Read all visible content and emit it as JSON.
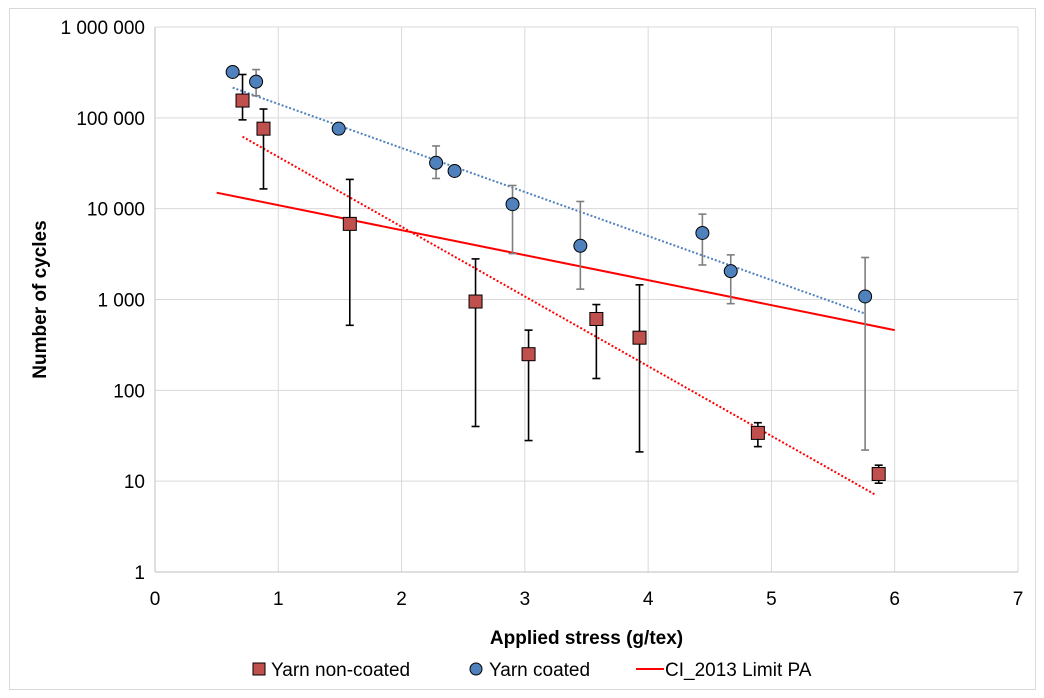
{
  "chart_data": {
    "type": "scatter",
    "xlabel": "Applied stress (g/tex)",
    "ylabel": "Number of cycles",
    "xlim": [
      0,
      7
    ],
    "ylim": [
      1,
      1000000
    ],
    "y_scale": "log",
    "x_ticks": [
      0,
      1,
      2,
      3,
      4,
      5,
      6,
      7
    ],
    "x_tick_labels": [
      "0",
      "1",
      "2",
      "3",
      "4",
      "5",
      "6",
      "7"
    ],
    "y_ticks": [
      1,
      10,
      100,
      1000,
      10000,
      100000,
      1000000
    ],
    "y_tick_labels": [
      "1",
      "10",
      "100",
      "1 000",
      "10 000",
      "100 000",
      "1 000 000"
    ],
    "grid": true,
    "legend_position": "bottom",
    "series": [
      {
        "name": "Yarn non-coated",
        "marker": "square",
        "color": "#c0504d",
        "error_bar_color": "#000000",
        "points": [
          {
            "x": 0.71,
            "y": 155000,
            "err_low": 95000,
            "err_high": 300000
          },
          {
            "x": 0.88,
            "y": 76000,
            "err_low": 16500,
            "err_high": 125000
          },
          {
            "x": 1.58,
            "y": 6800,
            "err_low": 520,
            "err_high": 21000
          },
          {
            "x": 2.6,
            "y": 950,
            "err_low": 40,
            "err_high": 2800
          },
          {
            "x": 3.03,
            "y": 250,
            "err_low": 28,
            "err_high": 460
          },
          {
            "x": 3.58,
            "y": 610,
            "err_low": 135,
            "err_high": 880
          },
          {
            "x": 3.93,
            "y": 380,
            "err_low": 21,
            "err_high": 1450
          },
          {
            "x": 4.89,
            "y": 34,
            "err_low": 24,
            "err_high": 44
          },
          {
            "x": 5.87,
            "y": 12,
            "err_low": 9.5,
            "err_high": 15
          }
        ],
        "trendline": {
          "color": "#ff0000",
          "style": "dotted",
          "from": [
            0.71,
            62000
          ],
          "to": [
            5.85,
            7
          ]
        }
      },
      {
        "name": "Yarn coated",
        "marker": "circle",
        "color": "#4f81bd",
        "error_bar_color": "#7f7f7f",
        "points": [
          {
            "x": 0.63,
            "y": 320000
          },
          {
            "x": 0.82,
            "y": 250000,
            "err_low": 175000,
            "err_high": 340000
          },
          {
            "x": 1.49,
            "y": 76000,
            "err_low": 66000,
            "err_high": 85000
          },
          {
            "x": 2.28,
            "y": 32000,
            "err_low": 21500,
            "err_high": 49000
          },
          {
            "x": 2.43,
            "y": 26000,
            "err_low": 23000,
            "err_high": 29000
          },
          {
            "x": 2.9,
            "y": 11200,
            "err_low": 3200,
            "err_high": 18000
          },
          {
            "x": 3.45,
            "y": 3900,
            "err_low": 1300,
            "err_high": 12000
          },
          {
            "x": 4.44,
            "y": 5400,
            "err_low": 2400,
            "err_high": 8700
          },
          {
            "x": 4.67,
            "y": 2050,
            "err_low": 900,
            "err_high": 3100
          },
          {
            "x": 5.76,
            "y": 1080,
            "err_low": 22,
            "err_high": 2900
          }
        ],
        "trendline": {
          "color": "#4f81bd",
          "style": "dotted",
          "from": [
            0.63,
            215000
          ],
          "to": [
            5.76,
            700
          ]
        }
      },
      {
        "name": "CI_2013 Limit PA",
        "type": "line",
        "color": "#ff0000",
        "x": [
          0.5,
          6
        ],
        "y": [
          15000,
          460
        ]
      }
    ]
  }
}
